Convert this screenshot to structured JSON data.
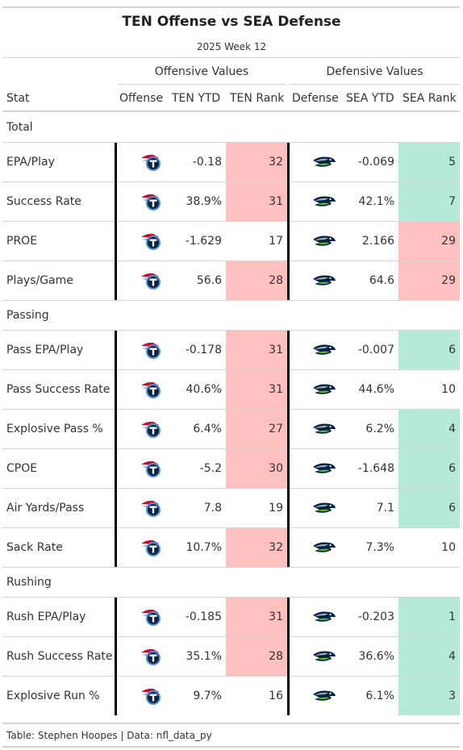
{
  "header": {
    "title": "TEN Offense vs SEA Defense",
    "subtitle": "2025 Week 12"
  },
  "spanners": {
    "offense": "Offensive Values",
    "defense": "Defensive Values"
  },
  "columns": [
    "Stat",
    "Offense",
    "TEN YTD",
    "TEN Rank",
    "Defense",
    "SEA YTD",
    "SEA Rank"
  ],
  "logos": {
    "offense_icon": "titans-logo-icon",
    "defense_icon": "seahawks-logo-icon"
  },
  "colors": {
    "bad_rank": "#ffc0c0",
    "good_rank": "#b5ead7",
    "titans_navy": "#0c2340",
    "titans_blue": "#4b92db",
    "titans_red": "#c8102e",
    "seahawks_navy": "#002244",
    "seahawks_green": "#69be28",
    "seahawks_grey": "#a5acaf"
  },
  "groups": [
    {
      "label": "Total",
      "rows": [
        {
          "stat": "EPA/Play",
          "ten_ytd": "-0.18",
          "ten_rank": "32",
          "ten_shade": "bad",
          "sea_ytd": "-0.069",
          "sea_rank": "5",
          "sea_shade": "good"
        },
        {
          "stat": "Success Rate",
          "ten_ytd": "38.9%",
          "ten_rank": "31",
          "ten_shade": "bad",
          "sea_ytd": "42.1%",
          "sea_rank": "7",
          "sea_shade": "good"
        },
        {
          "stat": "PROE",
          "ten_ytd": "-1.629",
          "ten_rank": "17",
          "ten_shade": "",
          "sea_ytd": "2.166",
          "sea_rank": "29",
          "sea_shade": "bad"
        },
        {
          "stat": "Plays/Game",
          "ten_ytd": "56.6",
          "ten_rank": "28",
          "ten_shade": "bad",
          "sea_ytd": "64.6",
          "sea_rank": "29",
          "sea_shade": "bad"
        }
      ]
    },
    {
      "label": "Passing",
      "rows": [
        {
          "stat": "Pass EPA/Play",
          "ten_ytd": "-0.178",
          "ten_rank": "31",
          "ten_shade": "bad",
          "sea_ytd": "-0.007",
          "sea_rank": "6",
          "sea_shade": "good"
        },
        {
          "stat": "Pass Success Rate",
          "ten_ytd": "40.6%",
          "ten_rank": "31",
          "ten_shade": "bad",
          "sea_ytd": "44.6%",
          "sea_rank": "10",
          "sea_shade": ""
        },
        {
          "stat": "Explosive Pass %",
          "ten_ytd": "6.4%",
          "ten_rank": "27",
          "ten_shade": "bad",
          "sea_ytd": "6.2%",
          "sea_rank": "4",
          "sea_shade": "good"
        },
        {
          "stat": "CPOE",
          "ten_ytd": "-5.2",
          "ten_rank": "30",
          "ten_shade": "bad",
          "sea_ytd": "-1.648",
          "sea_rank": "6",
          "sea_shade": "good"
        },
        {
          "stat": "Air Yards/Pass",
          "ten_ytd": "7.8",
          "ten_rank": "19",
          "ten_shade": "",
          "sea_ytd": "7.1",
          "sea_rank": "6",
          "sea_shade": "good"
        },
        {
          "stat": "Sack Rate",
          "ten_ytd": "10.7%",
          "ten_rank": "32",
          "ten_shade": "bad",
          "sea_ytd": "7.3%",
          "sea_rank": "10",
          "sea_shade": ""
        }
      ]
    },
    {
      "label": "Rushing",
      "rows": [
        {
          "stat": "Rush EPA/Play",
          "ten_ytd": "-0.185",
          "ten_rank": "31",
          "ten_shade": "bad",
          "sea_ytd": "-0.203",
          "sea_rank": "1",
          "sea_shade": "good"
        },
        {
          "stat": "Rush Success Rate",
          "ten_ytd": "35.1%",
          "ten_rank": "28",
          "ten_shade": "bad",
          "sea_ytd": "36.6%",
          "sea_rank": "4",
          "sea_shade": "good"
        },
        {
          "stat": "Explosive Run %",
          "ten_ytd": "9.7%",
          "ten_rank": "16",
          "ten_shade": "",
          "sea_ytd": "6.1%",
          "sea_rank": "3",
          "sea_shade": "good"
        }
      ]
    }
  ],
  "footer": "Table: Stephen Hoopes | Data: nfl_data_py"
}
